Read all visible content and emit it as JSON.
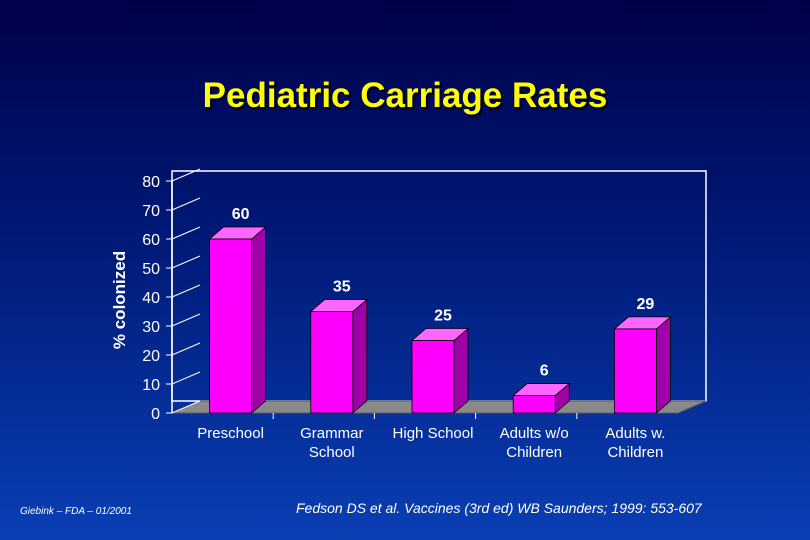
{
  "chart_data": {
    "type": "bar",
    "title": "Pediatric Carriage Rates",
    "xlabel": "",
    "ylabel": "% colonized",
    "ylim": [
      0,
      80
    ],
    "yticks": [
      "0",
      "10",
      "20",
      "30",
      "40",
      "50",
      "60",
      "70",
      "80"
    ],
    "categories": [
      [
        "Preschool"
      ],
      [
        "Grammar",
        "School"
      ],
      [
        "High School"
      ],
      [
        "Adults w/o",
        "Children"
      ],
      [
        "Adults w.",
        "Children"
      ]
    ],
    "values": [
      60,
      35,
      25,
      6,
      29
    ],
    "data_labels": [
      "60",
      "35",
      "25",
      "6",
      "29"
    ],
    "bar_color": "#ff00ff"
  },
  "footer": {
    "left": "Giebink – FDA – 01/2001",
    "right": "Fedson DS et al. Vaccines (3rd ed) WB Saunders; 1999: 553-607"
  },
  "colors": {
    "title": "#ffff00",
    "text": "#ffffff",
    "bar": "#ff00ff"
  }
}
